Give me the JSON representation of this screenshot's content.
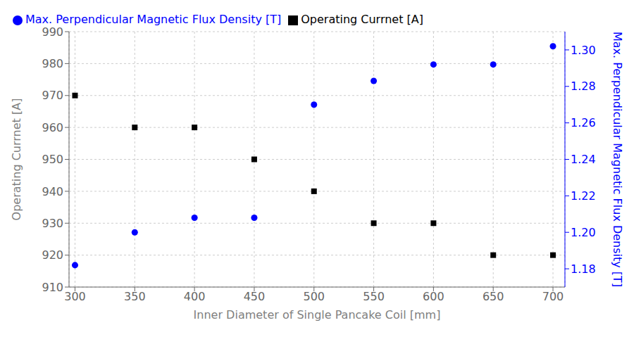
{
  "chart_data": {
    "type": "scatter",
    "xlabel": "Inner Diameter of Single Pancake Coil [mm]",
    "ylabel": "Operating Currnet [A]",
    "y2label": "Max. Perpendicular Magnetic Flux Density [T]",
    "x": [
      300,
      350,
      400,
      450,
      500,
      550,
      600,
      650,
      700
    ],
    "series": [
      {
        "name": "Operating Currnet [A]",
        "color": "black",
        "marker": "square",
        "values": [
          970,
          960,
          960,
          950,
          940,
          930,
          930,
          920,
          920
        ]
      },
      {
        "name": "Max. Perpendicular Magnetic Flux Density [T]",
        "color": "blue",
        "marker": "circle",
        "axis": "y2",
        "values": [
          1.182,
          1.2,
          1.208,
          1.208,
          1.27,
          1.283,
          1.292,
          1.292,
          1.302
        ]
      }
    ],
    "xlim": [
      295,
      710
    ],
    "xticks": [
      300,
      350,
      400,
      450,
      500,
      550,
      600,
      650,
      700
    ],
    "ylim": [
      910,
      990
    ],
    "yticks": [
      910,
      920,
      930,
      940,
      950,
      960,
      970,
      980,
      990
    ],
    "y2lim": [
      1.17,
      1.31
    ],
    "y2ticks": [
      1.18,
      {
        "value": 1.2,
        "label": "1.20"
      },
      1.22,
      1.24,
      1.26,
      1.28,
      {
        "value": 1.3,
        "label": "1.30"
      }
    ],
    "grid": true,
    "legend": "upper left"
  }
}
